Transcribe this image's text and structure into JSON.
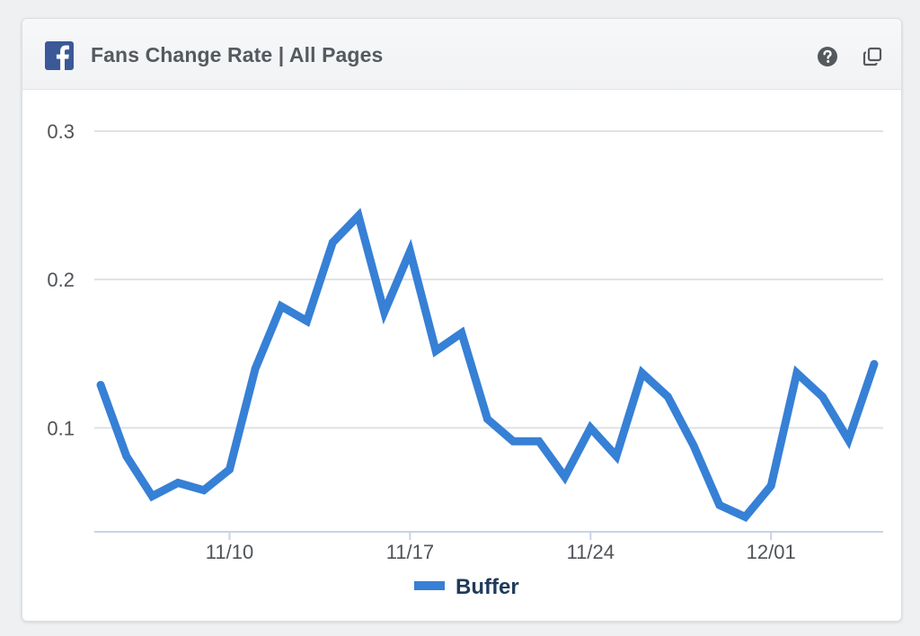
{
  "widget": {
    "title": "Fans Change Rate | All Pages",
    "logo_icon": "facebook-icon",
    "help_icon": "question-circle-icon",
    "copy_icon": "copy-icon"
  },
  "chart_data": {
    "type": "line",
    "title": "",
    "xlabel": "",
    "ylabel": "",
    "x": [
      "11/05",
      "11/06",
      "11/07",
      "11/08",
      "11/09",
      "11/10",
      "11/11",
      "11/12",
      "11/13",
      "11/14",
      "11/15",
      "11/16",
      "11/17",
      "11/18",
      "11/19",
      "11/20",
      "11/21",
      "11/22",
      "11/23",
      "11/24",
      "11/25",
      "11/26",
      "11/27",
      "11/28",
      "11/29",
      "11/30",
      "12/01",
      "12/02",
      "12/03",
      "12/04",
      "12/05"
    ],
    "x_ticks": [
      "11/10",
      "11/17",
      "11/24",
      "12/01"
    ],
    "y_ticks": [
      "0.1",
      "0.2",
      "0.3"
    ],
    "ylim": [
      0.03,
      0.3
    ],
    "grid": true,
    "legend_position": "bottom",
    "series": [
      {
        "name": "Buffer",
        "color": "#3680d6",
        "values": [
          0.129,
          0.081,
          0.054,
          0.063,
          0.058,
          0.072,
          0.14,
          0.182,
          0.172,
          0.225,
          0.243,
          0.178,
          0.219,
          0.152,
          0.164,
          0.106,
          0.091,
          0.091,
          0.067,
          0.1,
          0.081,
          0.137,
          0.121,
          0.088,
          0.048,
          0.04,
          0.061,
          0.137,
          0.121,
          0.092,
          0.143
        ]
      }
    ]
  }
}
